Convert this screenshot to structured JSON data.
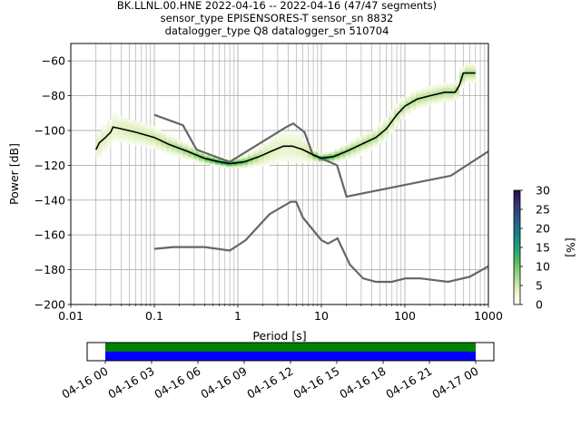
{
  "title_lines": [
    "BK.LLNL.00.HNE   2022-04-16 -- 2022-04-16  (47/47 segments)",
    "sensor_type EPISENSORES-T sensor_sn 8832",
    "datalogger_type Q8 datalogger_sn 510704"
  ],
  "chart_data": {
    "type": "heatmap",
    "title": "BK.LLNL.00.HNE   2022-04-16 -- 2022-04-16  (47/47 segments)",
    "xlabel": "Period [s]",
    "ylabel": "Power [dB]",
    "xscale": "log",
    "xlim": [
      0.01,
      1000
    ],
    "ylim": [
      -200,
      -50
    ],
    "x_ticks": [
      {
        "value": 0.01,
        "label": "0.01"
      },
      {
        "value": 0.1,
        "label": "0.1"
      },
      {
        "value": 1,
        "label": "1"
      },
      {
        "value": 10,
        "label": "10"
      },
      {
        "value": 100,
        "label": "100"
      },
      {
        "value": 1000,
        "label": "1000"
      }
    ],
    "y_ticks": [
      {
        "value": -60,
        "label": "−60"
      },
      {
        "value": -80,
        "label": "−80"
      },
      {
        "value": -100,
        "label": "−100"
      },
      {
        "value": -120,
        "label": "−120"
      },
      {
        "value": -140,
        "label": "−140"
      },
      {
        "value": -160,
        "label": "−160"
      },
      {
        "value": -180,
        "label": "−180"
      },
      {
        "value": -200,
        "label": "−200"
      }
    ],
    "grid": true,
    "colorbar": {
      "label": "[%]",
      "range": [
        0,
        30
      ],
      "ticks": [
        {
          "value": 0,
          "label": "0"
        },
        {
          "value": 5,
          "label": "5"
        },
        {
          "value": 10,
          "label": "10"
        },
        {
          "value": 15,
          "label": "15"
        },
        {
          "value": 20,
          "label": "20"
        },
        {
          "value": 25,
          "label": "25"
        },
        {
          "value": 30,
          "label": "30"
        }
      ],
      "colors": [
        "#ffffff",
        "#e4f1c3",
        "#a3d889",
        "#55bf5c",
        "#1ea07e",
        "#177f88",
        "#255c86",
        "#3a3277",
        "#2a0f45"
      ]
    },
    "mean_curve": {
      "x": [
        0.02,
        0.022,
        0.026,
        0.03,
        0.032,
        0.04,
        0.06,
        0.1,
        0.15,
        0.25,
        0.4,
        0.6,
        0.8,
        1.2,
        1.8,
        2.5,
        3.5,
        4.5,
        6,
        8,
        10,
        14,
        20,
        30,
        45,
        60,
        80,
        100,
        140,
        200,
        300,
        400,
        450,
        500,
        600,
        700
      ],
      "y": [
        -111,
        -107,
        -104,
        -101,
        -98,
        -99,
        -101,
        -104,
        -108,
        -112,
        -116,
        -118,
        -119,
        -118,
        -115,
        -112,
        -109,
        -109,
        -111,
        -114,
        -116,
        -115,
        -112,
        -108,
        -104,
        -99,
        -91,
        -86,
        -82,
        -80,
        -78,
        -78,
        -74,
        -67,
        -67,
        -67
      ]
    },
    "noise_models": [
      {
        "name": "high",
        "x": [
          0.1,
          0.22,
          0.32,
          0.8,
          3.8,
          4.6,
          6.3,
          7.9,
          10,
          15.4,
          20,
          354.8,
          1000
        ],
        "y": [
          -91,
          -97,
          -111,
          -118,
          -98,
          -96,
          -101,
          -114,
          -116,
          -120,
          -138,
          -126,
          -112
        ]
      },
      {
        "name": "low",
        "x": [
          0.1,
          0.17,
          0.4,
          0.8,
          1.24,
          2.4,
          4.3,
          5,
          6,
          10,
          12,
          15.6,
          21.9,
          31.6,
          45,
          70,
          101,
          154,
          328,
          600,
          1000
        ],
        "y": [
          -168,
          -167,
          -167,
          -169,
          -163,
          -148,
          -141,
          -141,
          -150,
          -163,
          -165,
          -162,
          -177,
          -185,
          -187,
          -187,
          -185,
          -185,
          -187,
          -184,
          -178
        ]
      }
    ],
    "histogram_band": {
      "x": [
        0.02,
        0.022,
        0.026,
        0.03,
        0.032,
        0.04,
        0.06,
        0.1,
        0.15,
        0.25,
        0.4,
        0.6,
        0.8,
        1.2,
        1.8,
        2.5,
        3.5,
        4.5,
        6,
        8,
        10,
        14,
        20,
        30,
        45,
        60,
        80,
        100,
        140,
        200,
        300,
        400,
        450,
        500,
        600,
        700
      ],
      "y_center": [
        -111,
        -107,
        -104,
        -101,
        -98,
        -99,
        -101,
        -104,
        -108,
        -112,
        -116,
        -118,
        -119,
        -118,
        -115,
        -112,
        -109,
        -109,
        -111,
        -114,
        -116,
        -115,
        -112,
        -108,
        -104,
        -99,
        -91,
        -86,
        -82,
        -80,
        -78,
        -78,
        -74,
        -67,
        -67,
        -67
      ],
      "y_spread": [
        8,
        8,
        8,
        9,
        10,
        8,
        7,
        6,
        5,
        4,
        3,
        2,
        2,
        3,
        5,
        8,
        10,
        10,
        8,
        4,
        2,
        3,
        4,
        5,
        5,
        6,
        6,
        5,
        5,
        5,
        5,
        5,
        5,
        5,
        5,
        5
      ],
      "peak_percent": 30
    },
    "data_availability": {
      "start": "04-16 00",
      "end": "04-17 00",
      "ticks": [
        "04-16 00",
        "04-16 03",
        "04-16 06",
        "04-16 09",
        "04-16 12",
        "04-16 15",
        "04-16 18",
        "04-16 21",
        "04-17 00"
      ],
      "rows": [
        {
          "color": "#008000",
          "from": "04-16 00",
          "to": "04-17 00"
        },
        {
          "color": "#0000ff",
          "from": "04-16 00",
          "to": "04-17 00"
        }
      ]
    }
  }
}
